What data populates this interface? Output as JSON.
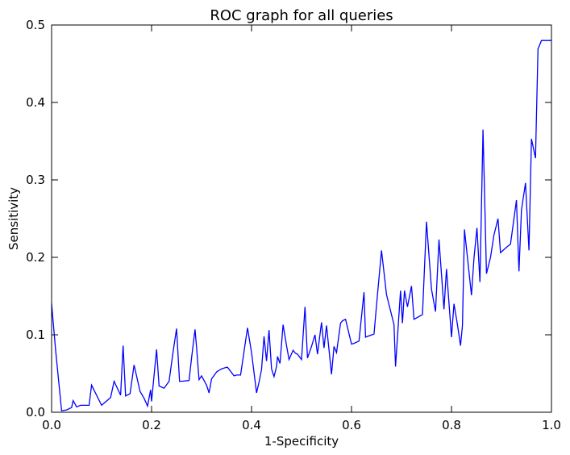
{
  "chart_data": {
    "type": "line",
    "title": "ROC graph for all queries",
    "xlabel": "1-Specificity",
    "ylabel": "Sensitivity",
    "xlim": [
      0.0,
      1.0
    ],
    "ylim": [
      0.0,
      0.5
    ],
    "x_ticks": [
      "0.0",
      "0.2",
      "0.4",
      "0.6",
      "0.8",
      "1.0"
    ],
    "y_ticks": [
      "0.0",
      "0.1",
      "0.2",
      "0.3",
      "0.4",
      "0.5"
    ],
    "grid": false,
    "legend": "none",
    "series": [
      {
        "color": "#0000ff",
        "x": [
          0.0,
          0.008,
          0.02,
          0.03,
          0.04,
          0.043,
          0.05,
          0.058,
          0.075,
          0.08,
          0.09,
          0.1,
          0.118,
          0.125,
          0.138,
          0.143,
          0.148,
          0.157,
          0.165,
          0.177,
          0.185,
          0.192,
          0.198,
          0.2,
          0.21,
          0.215,
          0.225,
          0.235,
          0.243,
          0.25,
          0.256,
          0.26,
          0.275,
          0.28,
          0.287,
          0.29,
          0.295,
          0.3,
          0.31,
          0.315,
          0.32,
          0.33,
          0.34,
          0.35,
          0.352,
          0.365,
          0.37,
          0.378,
          0.392,
          0.4,
          0.41,
          0.415,
          0.42,
          0.425,
          0.43,
          0.435,
          0.44,
          0.445,
          0.45,
          0.452,
          0.457,
          0.463,
          0.47,
          0.475,
          0.483,
          0.488,
          0.492,
          0.5,
          0.507,
          0.512,
          0.52,
          0.527,
          0.532,
          0.54,
          0.545,
          0.55,
          0.56,
          0.565,
          0.57,
          0.578,
          0.582,
          0.588,
          0.6,
          0.605,
          0.615,
          0.625,
          0.628,
          0.645,
          0.65,
          0.66,
          0.67,
          0.675,
          0.685,
          0.688,
          0.698,
          0.702,
          0.706,
          0.712,
          0.72,
          0.725,
          0.742,
          0.75,
          0.76,
          0.768,
          0.775,
          0.785,
          0.79,
          0.8,
          0.805,
          0.812,
          0.818,
          0.822,
          0.826,
          0.84,
          0.845,
          0.851,
          0.857,
          0.863,
          0.87,
          0.878,
          0.885,
          0.893,
          0.898,
          0.91,
          0.918,
          0.93,
          0.935,
          0.94,
          0.948,
          0.955,
          0.96,
          0.968,
          0.973,
          0.98,
          1.0
        ],
        "y": [
          0.14,
          0.08,
          0.002,
          0.003,
          0.006,
          0.015,
          0.007,
          0.009,
          0.009,
          0.035,
          0.022,
          0.009,
          0.019,
          0.04,
          0.022,
          0.086,
          0.021,
          0.024,
          0.061,
          0.027,
          0.018,
          0.008,
          0.029,
          0.014,
          0.081,
          0.034,
          0.031,
          0.04,
          0.078,
          0.108,
          0.04,
          0.04,
          0.041,
          0.07,
          0.107,
          0.084,
          0.042,
          0.047,
          0.035,
          0.025,
          0.043,
          0.052,
          0.056,
          0.058,
          0.058,
          0.047,
          0.048,
          0.048,
          0.109,
          0.077,
          0.025,
          0.039,
          0.055,
          0.098,
          0.066,
          0.106,
          0.056,
          0.046,
          0.059,
          0.072,
          0.063,
          0.113,
          0.086,
          0.068,
          0.08,
          0.076,
          0.075,
          0.068,
          0.136,
          0.07,
          0.085,
          0.1,
          0.075,
          0.116,
          0.083,
          0.112,
          0.049,
          0.085,
          0.077,
          0.115,
          0.118,
          0.12,
          0.088,
          0.089,
          0.092,
          0.155,
          0.097,
          0.101,
          0.138,
          0.209,
          0.152,
          0.139,
          0.113,
          0.059,
          0.157,
          0.115,
          0.157,
          0.136,
          0.163,
          0.12,
          0.126,
          0.246,
          0.159,
          0.13,
          0.223,
          0.133,
          0.185,
          0.097,
          0.14,
          0.113,
          0.086,
          0.112,
          0.236,
          0.151,
          0.199,
          0.238,
          0.168,
          0.365,
          0.179,
          0.2,
          0.229,
          0.25,
          0.206,
          0.213,
          0.217,
          0.274,
          0.182,
          0.261,
          0.296,
          0.209,
          0.353,
          0.328,
          0.469,
          0.48,
          0.48
        ]
      }
    ]
  }
}
